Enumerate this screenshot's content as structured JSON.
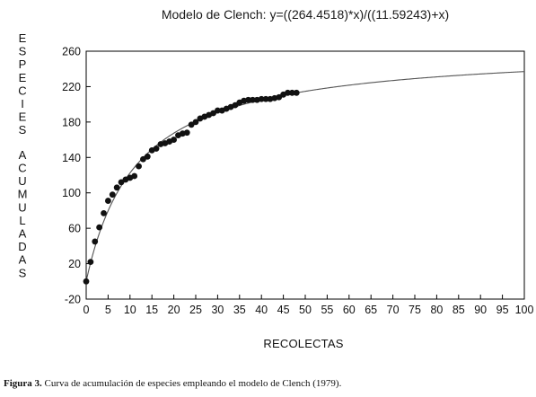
{
  "chart_data": {
    "type": "scatter",
    "title": "Modelo de Clench: y=((264.4518)*x)/((11.59243)+x)",
    "xlabel": "RECOLECTAS",
    "ylabel": "ESPECIES ACUMULADAS",
    "xlim": [
      0,
      100
    ],
    "ylim": [
      -20,
      260
    ],
    "x_ticks": [
      0,
      5,
      10,
      15,
      20,
      25,
      30,
      35,
      40,
      45,
      50,
      55,
      60,
      65,
      70,
      75,
      80,
      85,
      90,
      95,
      100
    ],
    "y_ticks": [
      -20,
      20,
      60,
      100,
      140,
      180,
      220,
      260
    ],
    "series": [
      {
        "kind": "points",
        "x": [
          0,
          1,
          2,
          3,
          4,
          5,
          6,
          7,
          8,
          9,
          10,
          11,
          12,
          13,
          14,
          15,
          16,
          17,
          18,
          19,
          20,
          21,
          22,
          23,
          24,
          25,
          26,
          27,
          28,
          29,
          30,
          31,
          32,
          33,
          34,
          35,
          36,
          37,
          38,
          39,
          40,
          41,
          42,
          43,
          44,
          45,
          46,
          47,
          48
        ],
        "y": [
          0,
          22,
          45,
          61,
          77,
          91,
          98,
          106,
          112,
          115,
          117,
          119,
          130,
          138,
          141,
          148,
          150,
          155,
          156,
          158,
          160,
          165,
          167,
          168,
          177,
          180,
          184,
          186,
          188,
          190,
          193,
          193,
          195,
          197,
          199,
          202,
          204,
          205,
          205,
          205,
          206,
          206,
          206,
          207,
          208,
          211,
          213,
          213,
          213
        ]
      },
      {
        "kind": "curve",
        "model": "clench",
        "a": 264.4518,
        "b": 11.59243,
        "x_range": [
          0,
          100
        ]
      }
    ],
    "grid": false,
    "legend": "none",
    "colors": {
      "points": "#111111",
      "curve": "#555555",
      "axes": "#000000"
    }
  },
  "caption": {
    "label": "Figura 3.",
    "text": "Curva de acumulación de especies empleando el modelo de Clench (1979)."
  }
}
